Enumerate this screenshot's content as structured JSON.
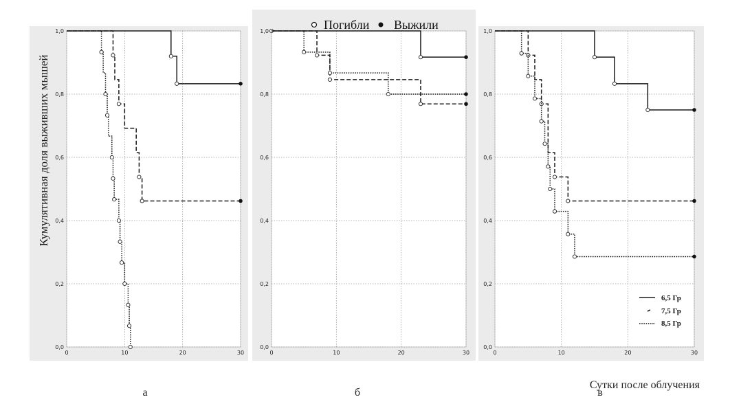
{
  "legend_top": {
    "censored": "Погибли",
    "event": "Выжили"
  },
  "ylabel": "Кумулятивная доля выживших мышей",
  "xlabel": "Сутки после облучения",
  "series_styles": [
    {
      "name": "6,5 Гр",
      "dash": ""
    },
    {
      "name": "7,5 Гр",
      "dash": "6 3"
    },
    {
      "name": "8,5 Гр",
      "dash": "1.6 1.6"
    }
  ],
  "chart_data": [
    {
      "type": "line",
      "panel_label": "а",
      "xlim": [
        0,
        30
      ],
      "ylim": [
        0,
        1
      ],
      "xticks": [
        "0",
        "10",
        "20",
        "30"
      ],
      "yticks": [
        "0,0",
        "0,2",
        "0,4",
        "0,6",
        "0,8",
        "1,0"
      ],
      "grid": true,
      "series": [
        {
          "steps": [
            [
              0,
              1.0
            ],
            [
              18,
              0.92
            ],
            [
              19,
              0.833
            ],
            [
              30,
              0.833
            ]
          ],
          "died": [
            [
              18,
              0.92
            ],
            [
              19,
              0.833
            ]
          ],
          "survived": [
            [
              30,
              0.833
            ]
          ]
        },
        {
          "steps": [
            [
              0,
              1.0
            ],
            [
              8,
              0.923
            ],
            [
              8.3,
              0.846
            ],
            [
              9,
              0.769
            ],
            [
              10,
              0.692
            ],
            [
              12,
              0.615
            ],
            [
              12.5,
              0.538
            ],
            [
              13,
              0.462
            ],
            [
              30,
              0.462
            ]
          ],
          "died": [
            [
              8,
              0.923
            ],
            [
              9,
              0.769
            ],
            [
              12.5,
              0.538
            ],
            [
              13,
              0.462
            ]
          ],
          "survived": [
            [
              30,
              0.462
            ]
          ]
        },
        {
          "steps": [
            [
              0,
              1.0
            ],
            [
              6,
              0.933
            ],
            [
              6.3,
              0.867
            ],
            [
              6.7,
              0.8
            ],
            [
              7,
              0.733
            ],
            [
              7.2,
              0.667
            ],
            [
              7.8,
              0.6
            ],
            [
              8,
              0.533
            ],
            [
              8.2,
              0.467
            ],
            [
              9,
              0.4
            ],
            [
              9.2,
              0.333
            ],
            [
              9.5,
              0.267
            ],
            [
              10,
              0.2
            ],
            [
              10.6,
              0.133
            ],
            [
              10.8,
              0.067
            ],
            [
              11,
              0.0
            ]
          ],
          "died": [
            [
              6,
              0.933
            ],
            [
              6.7,
              0.8
            ],
            [
              7,
              0.733
            ],
            [
              7.8,
              0.6
            ],
            [
              8,
              0.533
            ],
            [
              8.2,
              0.467
            ],
            [
              9,
              0.4
            ],
            [
              9.2,
              0.333
            ],
            [
              9.5,
              0.267
            ],
            [
              10,
              0.2
            ],
            [
              10.6,
              0.133
            ],
            [
              10.8,
              0.067
            ],
            [
              11,
              0.0
            ]
          ],
          "survived": []
        }
      ]
    },
    {
      "type": "line",
      "panel_label": "б",
      "xlim": [
        0,
        30
      ],
      "ylim": [
        0,
        1
      ],
      "xticks": [
        "0",
        "10",
        "20",
        "30"
      ],
      "yticks": [
        "0,0",
        "0,2",
        "0,4",
        "0,6",
        "0,8",
        "1,0"
      ],
      "grid": true,
      "series": [
        {
          "steps": [
            [
              0,
              1.0
            ],
            [
              23,
              0.917
            ],
            [
              30,
              0.917
            ]
          ],
          "died": [
            [
              0,
              1.0
            ],
            [
              23,
              0.917
            ]
          ],
          "survived": [
            [
              30,
              0.917
            ]
          ]
        },
        {
          "steps": [
            [
              0,
              1.0
            ],
            [
              7,
              0.923
            ],
            [
              9,
              0.846
            ],
            [
              23,
              0.769
            ],
            [
              30,
              0.769
            ]
          ],
          "died": [
            [
              7,
              0.923
            ],
            [
              9,
              0.846
            ],
            [
              23,
              0.769
            ]
          ],
          "survived": [
            [
              30,
              0.769
            ]
          ]
        },
        {
          "steps": [
            [
              0,
              1.0
            ],
            [
              5,
              0.933
            ],
            [
              9,
              0.867
            ],
            [
              18,
              0.8
            ],
            [
              30,
              0.8
            ]
          ],
          "died": [
            [
              5,
              0.933
            ],
            [
              9,
              0.867
            ],
            [
              18,
              0.8
            ]
          ],
          "survived": [
            [
              30,
              0.8
            ]
          ]
        }
      ]
    },
    {
      "type": "line",
      "panel_label": "в",
      "xlim": [
        0,
        30
      ],
      "ylim": [
        0,
        1
      ],
      "xticks": [
        "0",
        "10",
        "20",
        "30"
      ],
      "yticks": [
        "0,0",
        "0,2",
        "0,4",
        "0,6",
        "0,8",
        "1,0"
      ],
      "grid": true,
      "legend": {
        "placement": "bottom-right",
        "entries": [
          "6,5 Гр",
          "7,5 Гр",
          "8,5 Гр"
        ]
      },
      "series": [
        {
          "steps": [
            [
              0,
              1.0
            ],
            [
              15,
              0.917
            ],
            [
              18,
              0.833
            ],
            [
              23,
              0.75
            ],
            [
              30,
              0.75
            ]
          ],
          "died": [
            [
              15,
              0.917
            ],
            [
              18,
              0.833
            ],
            [
              23,
              0.75
            ]
          ],
          "survived": [
            [
              30,
              0.75
            ]
          ]
        },
        {
          "steps": [
            [
              0,
              1.0
            ],
            [
              5,
              0.923
            ],
            [
              6,
              0.846
            ],
            [
              7,
              0.769
            ],
            [
              8,
              0.615
            ],
            [
              9,
              0.538
            ],
            [
              11,
              0.462
            ],
            [
              30,
              0.462
            ]
          ],
          "died": [
            [
              5,
              0.923
            ],
            [
              7,
              0.769
            ],
            [
              9,
              0.538
            ],
            [
              11,
              0.462
            ]
          ],
          "survived": [
            [
              30,
              0.462
            ]
          ]
        },
        {
          "steps": [
            [
              0,
              1.0
            ],
            [
              4,
              0.929
            ],
            [
              5,
              0.857
            ],
            [
              6,
              0.786
            ],
            [
              7,
              0.714
            ],
            [
              7.5,
              0.643
            ],
            [
              8,
              0.571
            ],
            [
              8.3,
              0.5
            ],
            [
              9,
              0.429
            ],
            [
              11,
              0.357
            ],
            [
              12,
              0.286
            ],
            [
              30,
              0.286
            ]
          ],
          "died": [
            [
              4,
              0.929
            ],
            [
              5,
              0.857
            ],
            [
              6,
              0.786
            ],
            [
              7,
              0.714
            ],
            [
              7.5,
              0.643
            ],
            [
              8,
              0.571
            ],
            [
              8.3,
              0.5
            ],
            [
              9,
              0.429
            ],
            [
              11,
              0.357
            ],
            [
              12,
              0.286
            ]
          ],
          "survived": [
            [
              30,
              0.286
            ]
          ]
        }
      ]
    }
  ]
}
